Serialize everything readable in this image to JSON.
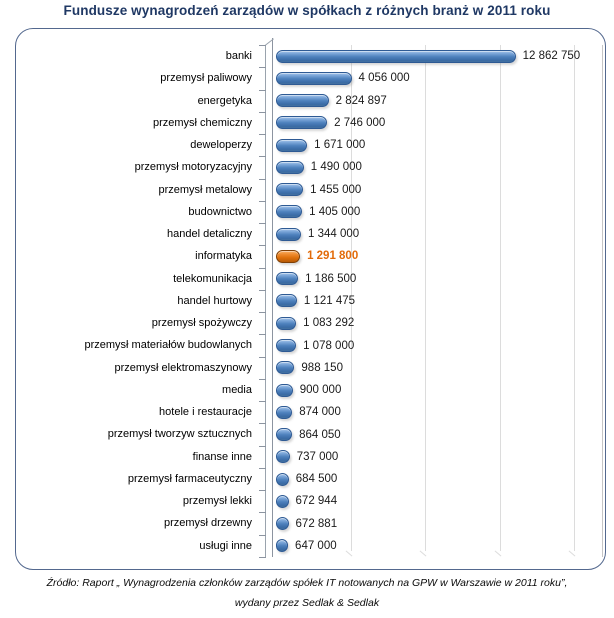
{
  "chart_data": {
    "type": "bar",
    "orientation": "horizontal",
    "title": "Fundusze wynagrodzeń zarządów w spółkach z różnych branż w 2011 roku",
    "xlabel": "",
    "ylabel": "",
    "legend": "none",
    "grid_on": true,
    "xlim": [
      0,
      17500000
    ],
    "gridlines": [
      4000000,
      8000000,
      12000000,
      16000000
    ],
    "bar_color": "#4F81BD",
    "highlight": {
      "index": 9,
      "category": "informatyka",
      "color": "#E26B0A"
    },
    "categories": [
      "banki",
      "przemysł paliwowy",
      "energetyka",
      "przemysł chemiczny",
      "deweloperzy",
      "przemysł motoryzacyjny",
      "przemysł metalowy",
      "budownictwo",
      "handel detaliczny",
      "informatyka",
      "telekomunikacja",
      "handel hurtowy",
      "przemysł spożywczy",
      "przemysł materiałów budowlanych",
      "przemysł elektromaszynowy",
      "media",
      "hotele i restauracje",
      "przemysł tworzyw sztucznych",
      "finanse inne",
      "przemysł farmaceutyczny",
      "przemysł lekki",
      "przemysł drzewny",
      "usługi inne"
    ],
    "values": [
      12862750,
      4056000,
      2824897,
      2746000,
      1671000,
      1490000,
      1455000,
      1405000,
      1344000,
      1291800,
      1186500,
      1121475,
      1083292,
      1078000,
      988150,
      900000,
      874000,
      864050,
      737000,
      684500,
      672944,
      672881,
      647000
    ],
    "value_labels": [
      "12 862 750",
      "4 056 000",
      "2 824 897",
      "2 746 000",
      "1 671 000",
      "1 490 000",
      "1 455 000",
      "1 405 000",
      "1 344 000",
      "1 291 800",
      "1 186 500",
      "1 121 475",
      "1 083 292",
      "1 078 000",
      "988 150",
      "900 000",
      "874 000",
      "864 050",
      "737 000",
      "684 500",
      "672 944",
      "672 881",
      "647 000"
    ]
  },
  "footer": {
    "line1": "Źródło: Raport „ Wynagrodzenia członków zarządów spółek IT notowanych na GPW w Warszawie w 2011 roku”,",
    "line2": "wydany przez Sedlak & Sedlak"
  },
  "colors": {
    "title_text": "#1F3864",
    "frame_border": "#53688E",
    "value_text": "#1A1A1A",
    "gridline": "#DCDCDC",
    "axis": "#8C94A0"
  }
}
